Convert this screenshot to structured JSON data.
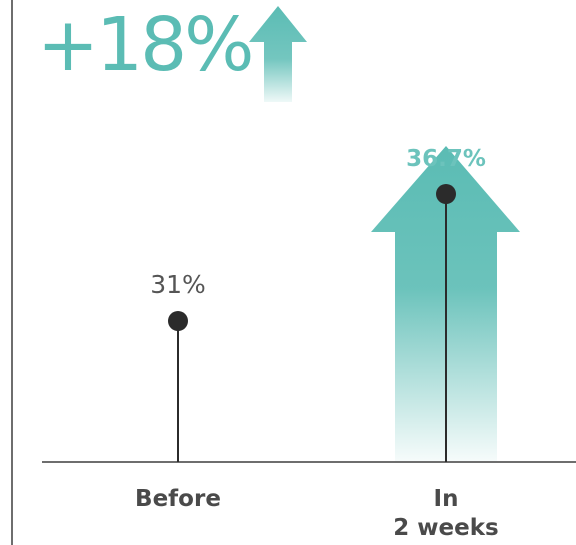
{
  "headline": {
    "text": "+18%",
    "arrow_icon": "up-arrow-icon",
    "color": "#5bbcb4"
  },
  "colors": {
    "accent": "#5bbcb4",
    "accent_label": "#6cc3bc",
    "marker": "#2b2b2b",
    "axis": "#6e6e6e",
    "text": "#555555"
  },
  "chart_data": {
    "type": "scatter",
    "categories": [
      "Before",
      "In\n2 weeks"
    ],
    "values": [
      31,
      36.7
    ],
    "data_labels": [
      "31%",
      "36.7%"
    ],
    "increase_label": "+18%",
    "title": "",
    "xlabel": "",
    "ylabel": "",
    "grid": false,
    "legend": "none"
  }
}
